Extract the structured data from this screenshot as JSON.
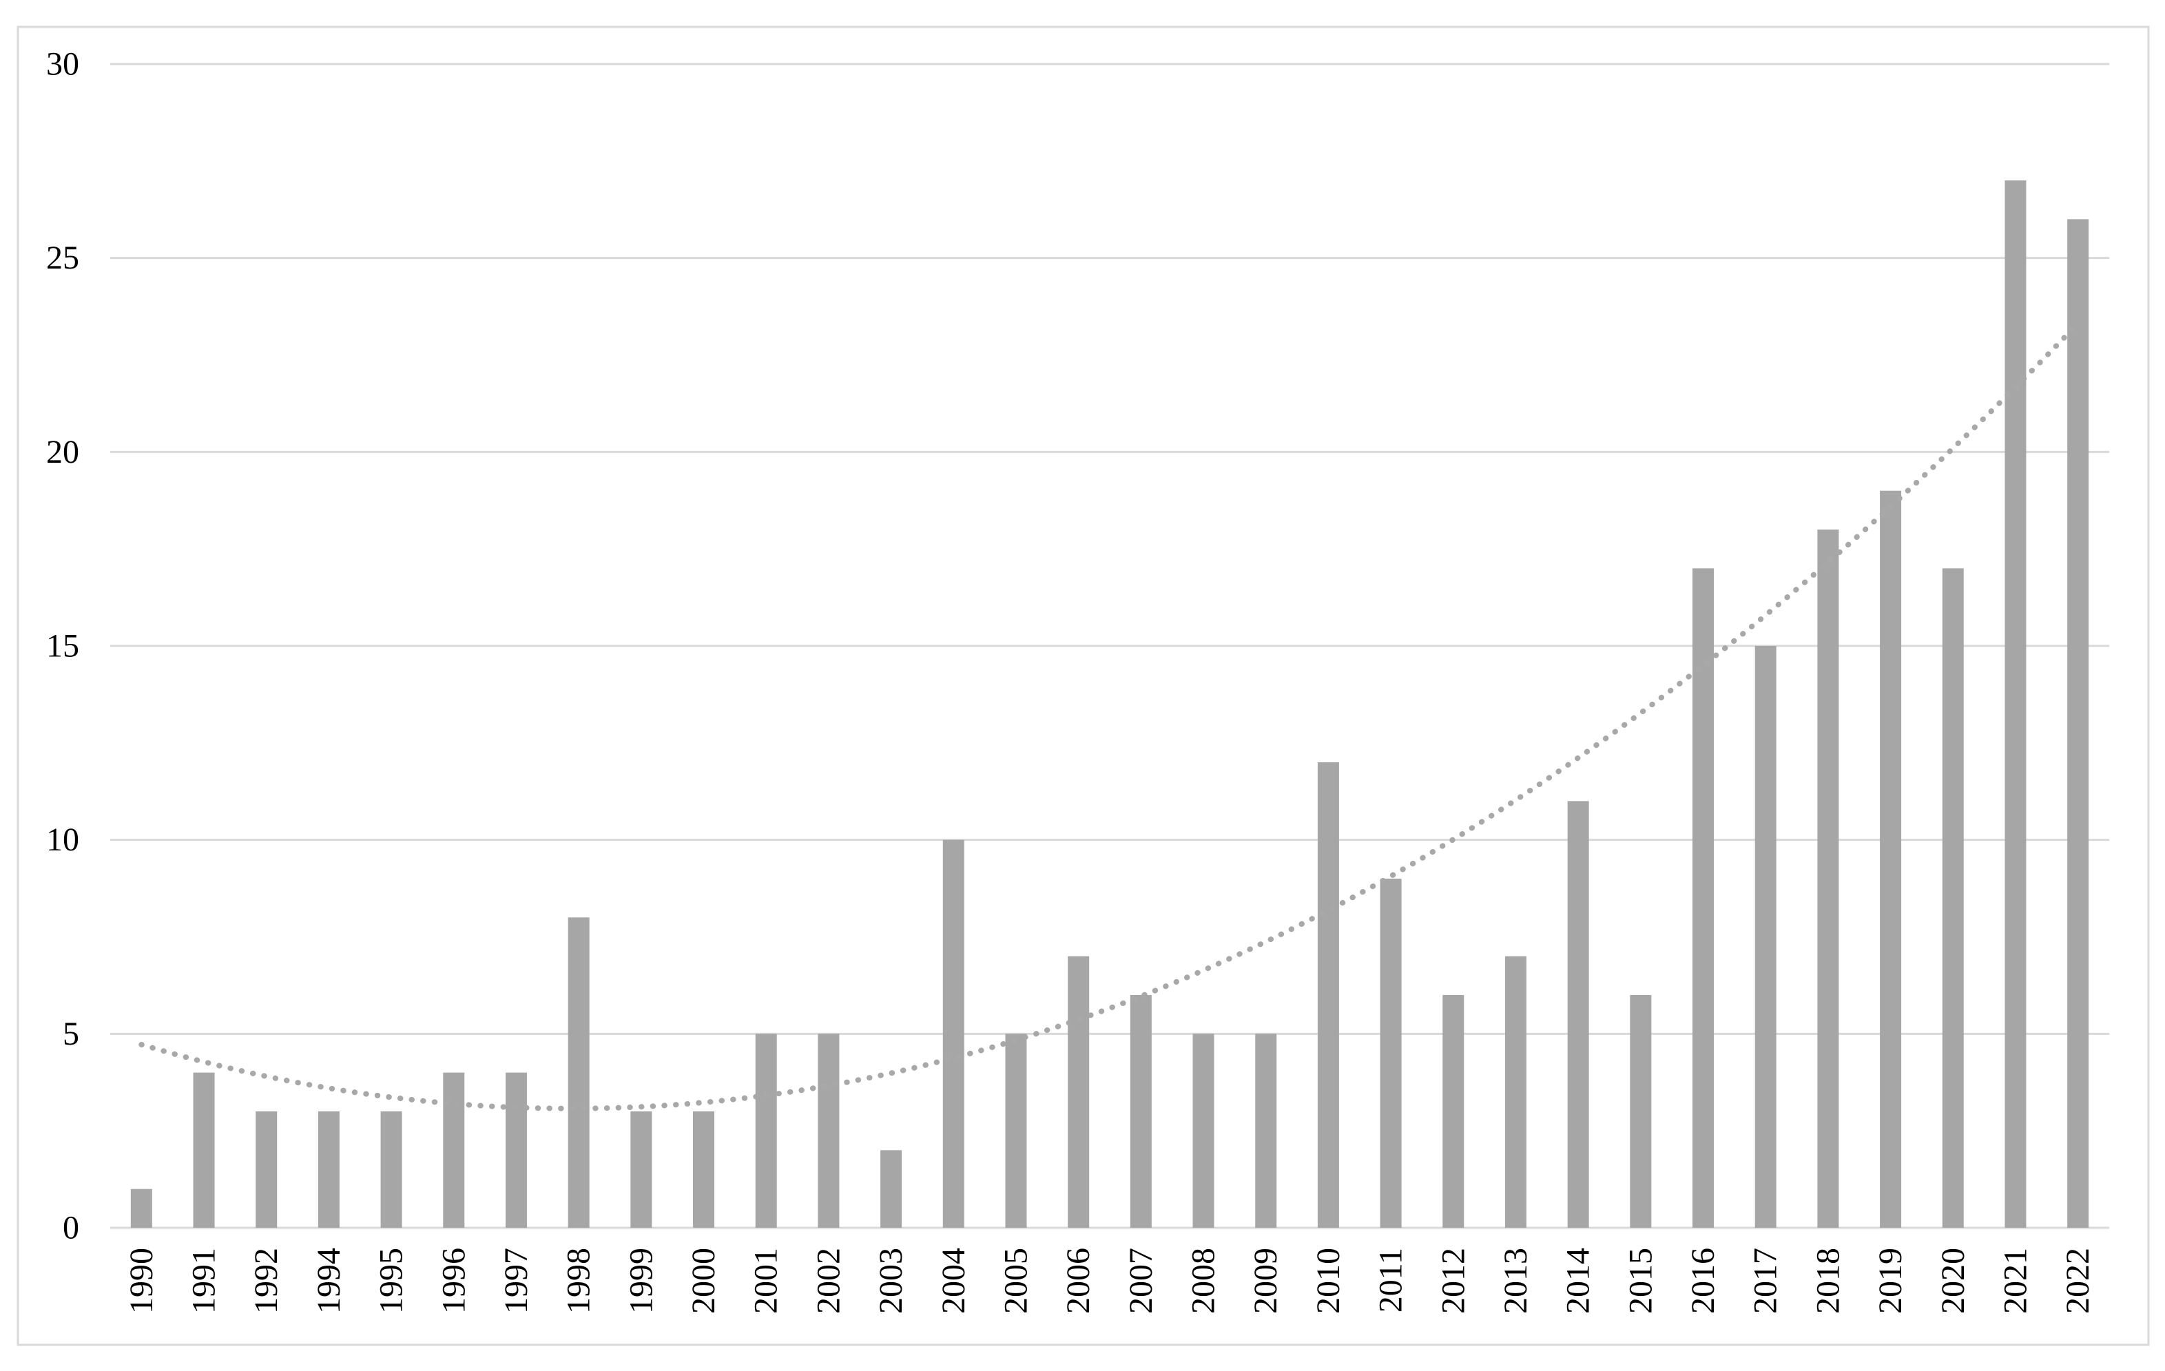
{
  "chart_data": {
    "type": "bar",
    "title": "",
    "xlabel": "",
    "ylabel": "",
    "categories": [
      "1990",
      "1991",
      "1992",
      "1994",
      "1995",
      "1996",
      "1997",
      "1998",
      "1999",
      "2000",
      "2001",
      "2002",
      "2003",
      "2004",
      "2005",
      "2006",
      "2007",
      "2008",
      "2009",
      "2010",
      "2011",
      "2012",
      "2013",
      "2014",
      "2015",
      "2016",
      "2017",
      "2018",
      "2019",
      "2020",
      "2021",
      "2022"
    ],
    "values": [
      1,
      4,
      3,
      3,
      3,
      4,
      4,
      8,
      3,
      3,
      5,
      5,
      2,
      10,
      5,
      7,
      6,
      5,
      5,
      12,
      9,
      6,
      7,
      11,
      6,
      17,
      15,
      18,
      19,
      17,
      27,
      26
    ],
    "ylim": [
      0,
      30
    ],
    "yticks": [
      0,
      5,
      10,
      15,
      20,
      25,
      30
    ],
    "grid": true,
    "legend": false,
    "x_label_rotation": -90,
    "trendline": {
      "kind": "polynomial",
      "order": 2,
      "style": "dotted"
    },
    "colors": {
      "bar": "#a6a6a6",
      "trendline": "#a8a8a8",
      "gridline": "#d9d9d9",
      "axis_line": "#d9d9d9",
      "border": "#d9d9d9",
      "label": "#000000",
      "background": "#ffffff"
    }
  }
}
